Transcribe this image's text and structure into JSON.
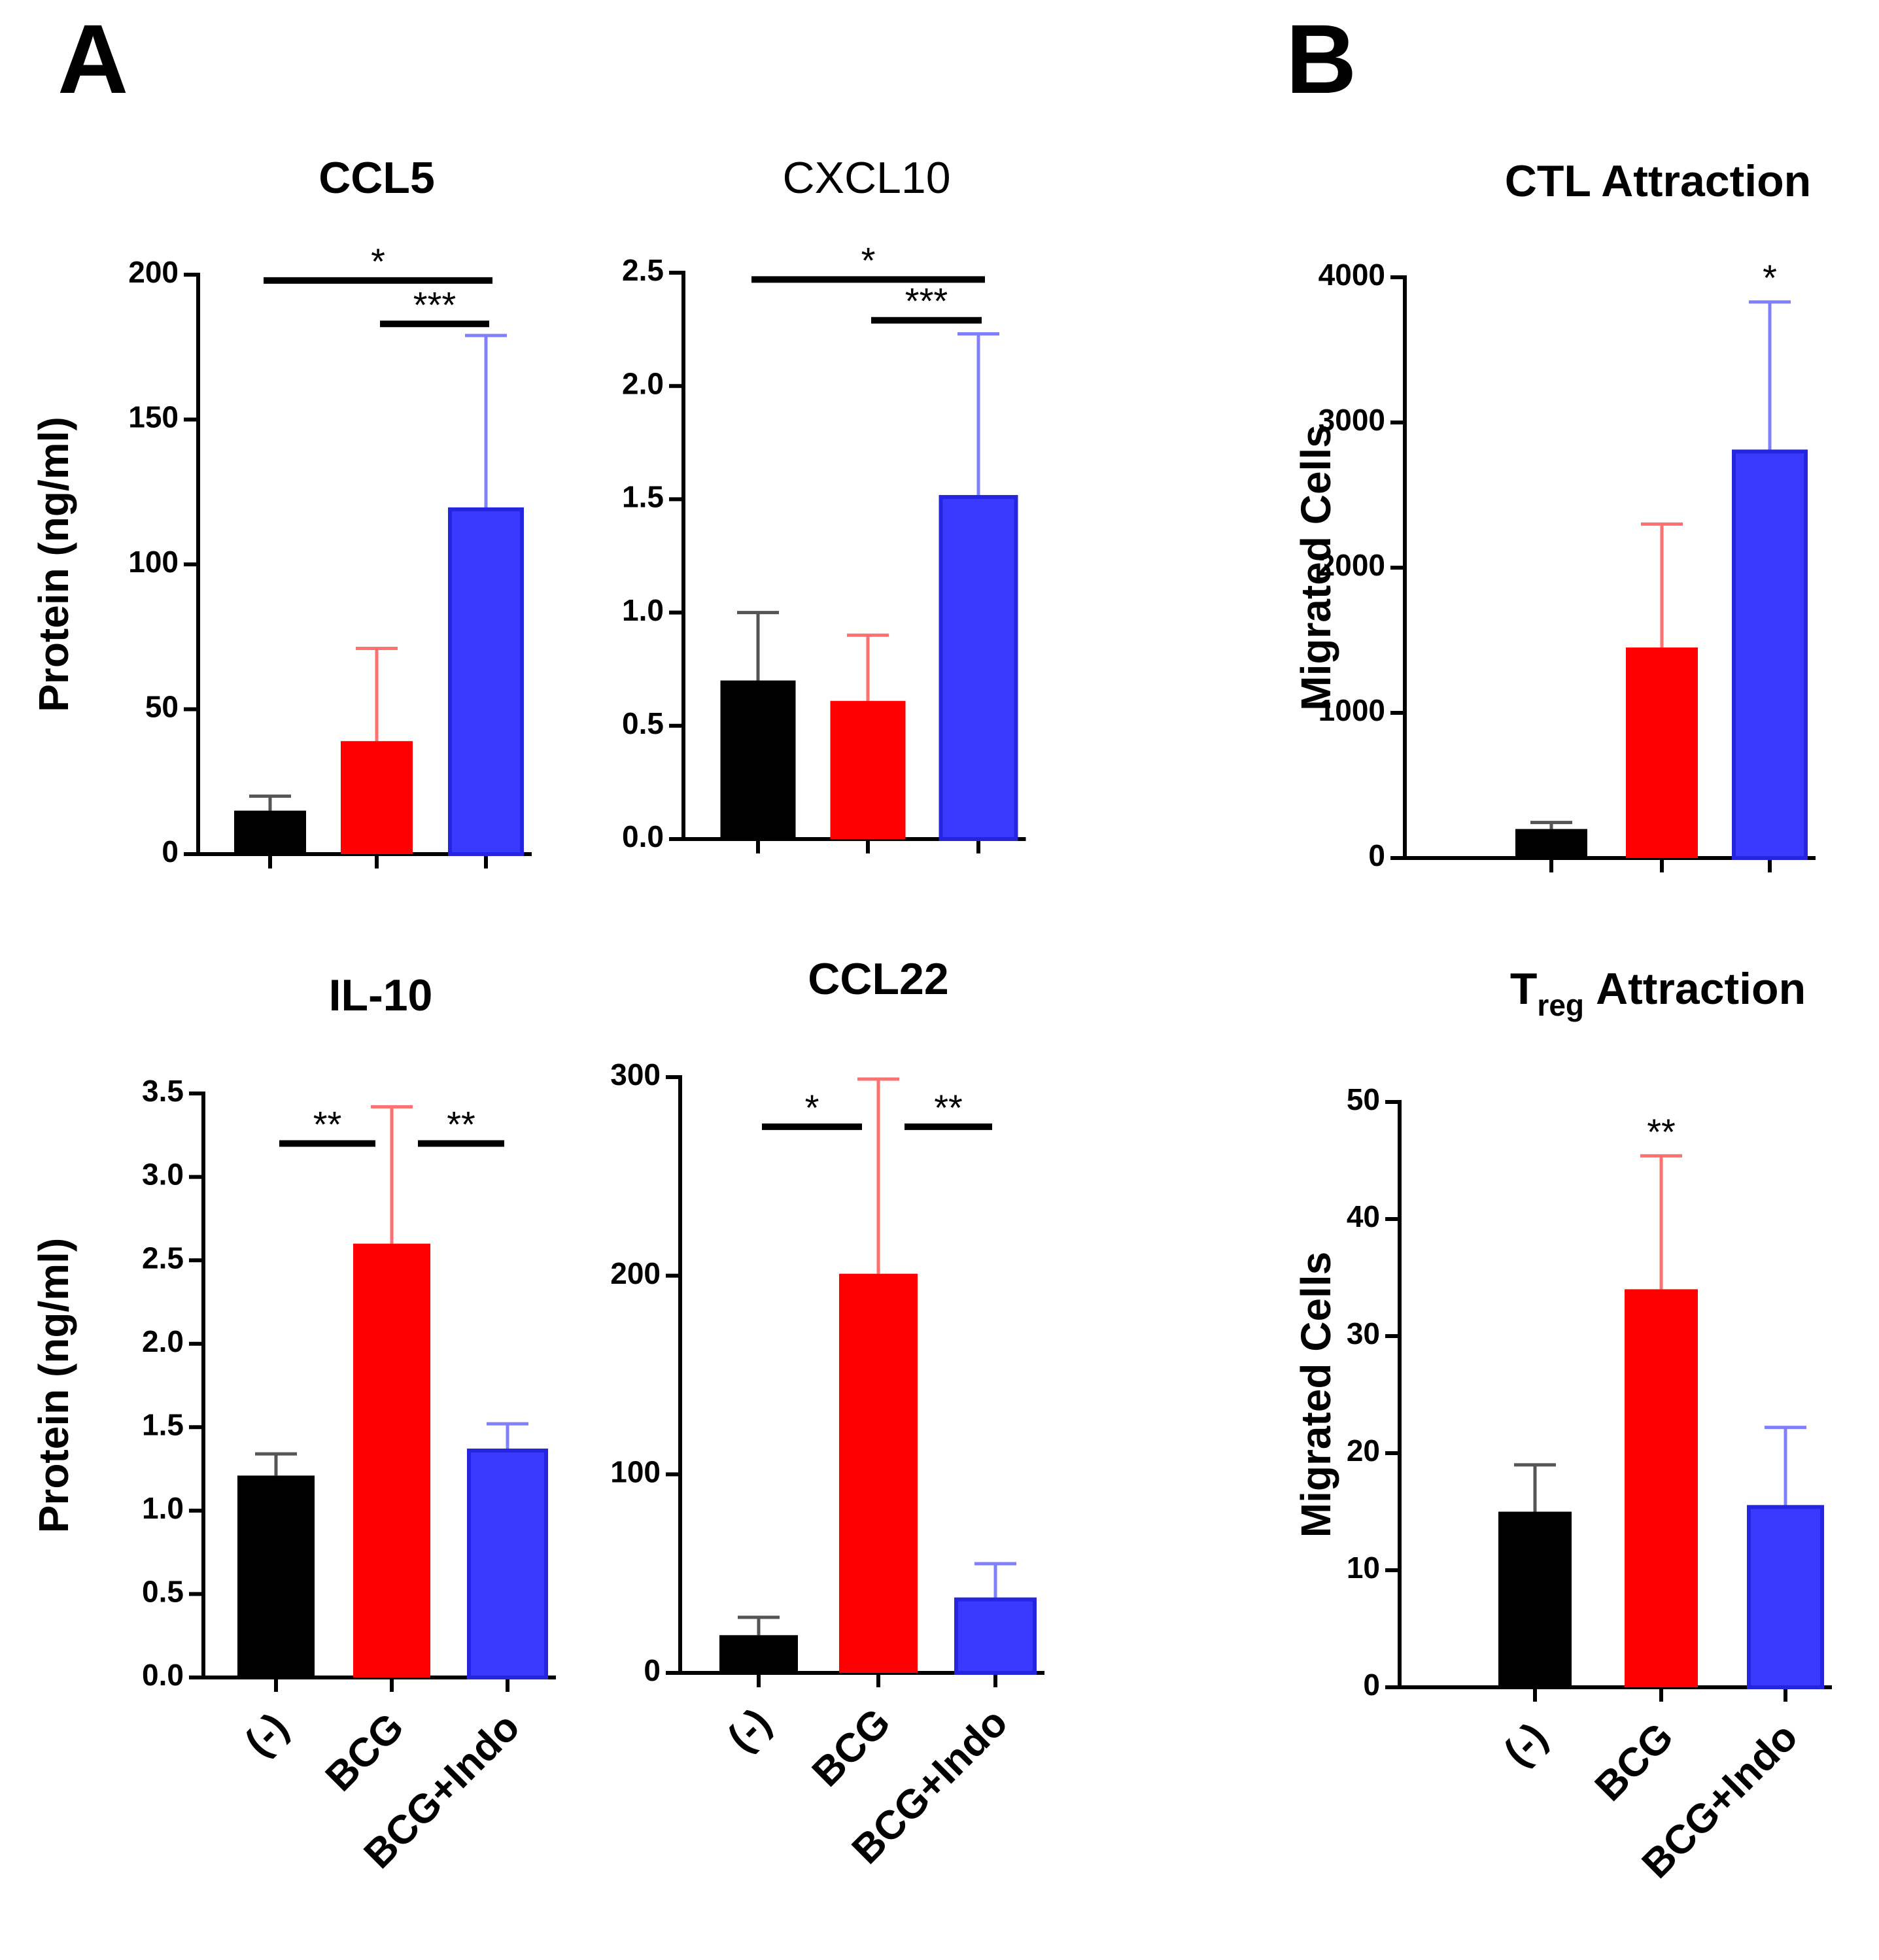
{
  "panel_labels": [
    "A",
    "B"
  ],
  "colors": {
    "neg": "#000000",
    "bcg": "#ff0000",
    "indo": "#3a3aff",
    "indo_edge": "#2525e0",
    "err_bcg": "#ff7070",
    "err_indo": "#8080ff",
    "err_neg": "#555555"
  },
  "categories": [
    "(-)",
    "BCG",
    "BCG+Indo"
  ],
  "chart_data": [
    {
      "id": "ccl5",
      "type": "bar",
      "title": "CCL5",
      "ylabel": "Protein (ng/ml)",
      "categories": [
        "(-)",
        "BCG",
        "BCG+Indo"
      ],
      "values": [
        15,
        39,
        119
      ],
      "errors": [
        5,
        32,
        60
      ],
      "ylim": [
        0,
        200
      ],
      "yticks": [
        "0",
        "50",
        "100",
        "150",
        "200"
      ],
      "significance": [
        {
          "from": 0,
          "to": 2,
          "label": "*",
          "y": 198
        },
        {
          "from": 1,
          "to": 2,
          "label": "***",
          "y": 183
        }
      ]
    },
    {
      "id": "cxcl10",
      "type": "bar",
      "title": "CXCL10",
      "ylabel": "",
      "categories": [
        "(-)",
        "BCG",
        "BCG+Indo"
      ],
      "values": [
        0.7,
        0.61,
        1.51
      ],
      "errors": [
        0.3,
        0.29,
        0.72
      ],
      "ylim": [
        0,
        2.5
      ],
      "yticks": [
        "0.0",
        "0.5",
        "1.0",
        "1.5",
        "2.0",
        "2.5"
      ],
      "significance": [
        {
          "from": 0,
          "to": 2,
          "label": "*",
          "y": 2.47
        },
        {
          "from": 1,
          "to": 2,
          "label": "***",
          "y": 2.29
        }
      ]
    },
    {
      "id": "il10",
      "type": "bar",
      "title": "IL-10",
      "ylabel": "Protein (ng/ml)",
      "categories": [
        "(-)",
        "BCG",
        "BCG+Indo"
      ],
      "values": [
        1.21,
        2.6,
        1.36
      ],
      "errors": [
        0.13,
        0.82,
        0.16
      ],
      "ylim": [
        0,
        3.5
      ],
      "yticks": [
        "0.0",
        "0.5",
        "1.0",
        "1.5",
        "2.0",
        "2.5",
        "3.0",
        "3.5"
      ],
      "significance": [
        {
          "from": 0,
          "to": 1,
          "label": "**",
          "y": 3.2
        },
        {
          "from": 1,
          "to": 2,
          "label": "**",
          "y": 3.2
        }
      ]
    },
    {
      "id": "ccl22",
      "type": "bar",
      "title": "CCL22",
      "ylabel": "",
      "categories": [
        "(-)",
        "BCG",
        "BCG+Indo"
      ],
      "values": [
        19,
        201,
        37
      ],
      "errors": [
        9,
        98,
        18
      ],
      "ylim": [
        0,
        300
      ],
      "yticks": [
        "0",
        "100",
        "200",
        "300"
      ],
      "significance": [
        {
          "from": 0,
          "to": 1,
          "label": "*",
          "y": 275
        },
        {
          "from": 1,
          "to": 2,
          "label": "**",
          "y": 275
        }
      ]
    },
    {
      "id": "ctl",
      "type": "bar",
      "title": "CTL Attraction",
      "ylabel": "Migrated Cells",
      "categories": [
        "(-)",
        "BCG",
        "BCG+Indo"
      ],
      "values": [
        200,
        1450,
        2800
      ],
      "errors": [
        45,
        850,
        1030
      ],
      "ylim": [
        0,
        4000
      ],
      "yticks": [
        "0",
        "1000",
        "2000",
        "3000",
        "4000"
      ],
      "significance": [
        {
          "over": 2,
          "label": "*",
          "y": 4000
        }
      ]
    },
    {
      "id": "treg",
      "type": "bar",
      "title_main": "T",
      "title_sub": "reg",
      "title_rest": "Attraction",
      "ylabel": "Migrated Cells",
      "categories": [
        "(-)",
        "BCG",
        "BCG+Indo"
      ],
      "values": [
        15,
        34,
        15.4
      ],
      "errors": [
        4,
        11.4,
        6.8
      ],
      "ylim": [
        0,
        50
      ],
      "yticks": [
        "0",
        "10",
        "20",
        "30",
        "40",
        "50"
      ],
      "significance": [
        {
          "over": 1,
          "label": "**",
          "y": 47.5
        }
      ]
    }
  ]
}
